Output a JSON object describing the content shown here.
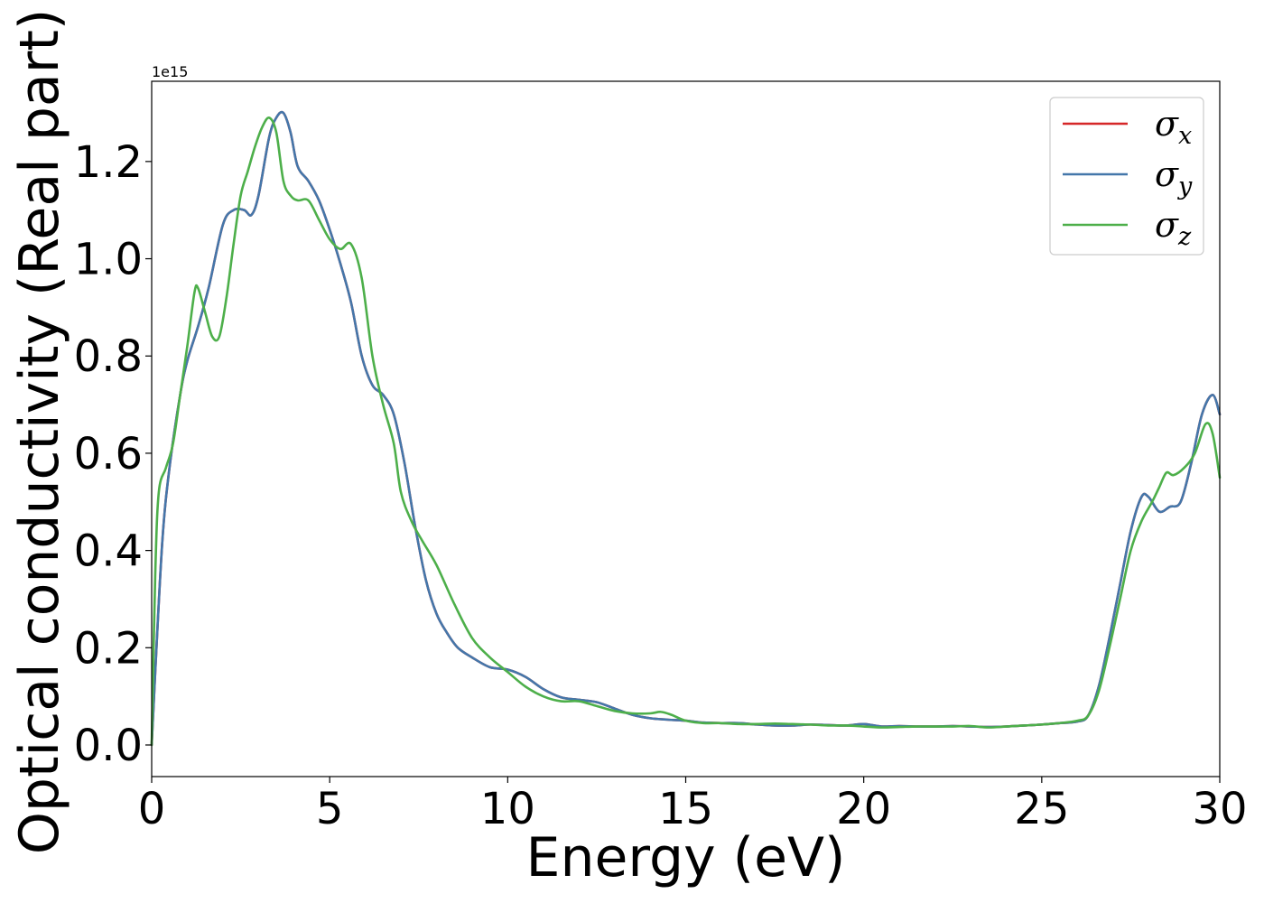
{
  "chart_data": {
    "type": "line",
    "xlabel": "Energy (eV)",
    "ylabel": "Optical conductivity (Real part)",
    "offset_text": "1e15",
    "xlim": [
      0,
      30
    ],
    "ylim": [
      -0.065,
      1.365
    ],
    "xticks": [
      0,
      5,
      10,
      15,
      20,
      25,
      30
    ],
    "xtick_labels": [
      "0",
      "5",
      "10",
      "15",
      "20",
      "25",
      "30"
    ],
    "yticks": [
      0.0,
      0.2,
      0.4,
      0.6,
      0.8,
      1.0,
      1.2
    ],
    "ytick_labels": [
      "0.0",
      "0.2",
      "0.4",
      "0.6",
      "0.8",
      "1.0",
      "1.2"
    ],
    "grid": false,
    "legend_position": "top-right",
    "series": [
      {
        "name": "σx",
        "symbol": "σ",
        "subscript": "x",
        "color": "#d62728",
        "x": [
          0,
          0.1,
          0.3,
          0.5,
          0.8,
          1.0,
          1.3,
          1.6,
          2.0,
          2.3,
          2.6,
          2.8,
          3.0,
          3.3,
          3.5,
          3.7,
          3.9,
          4.1,
          4.4,
          4.7,
          5.0,
          5.3,
          5.6,
          5.9,
          6.2,
          6.5,
          6.8,
          7.1,
          7.4,
          7.7,
          8.0,
          8.3,
          8.6,
          9.0,
          9.5,
          10.0,
          10.5,
          11.0,
          11.5,
          12.0,
          12.5,
          13.0,
          13.5,
          14.0,
          14.5,
          15.0,
          15.5,
          16.0,
          16.5,
          17.0,
          17.5,
          18.0,
          18.5,
          19.0,
          19.5,
          20.0,
          20.5,
          21.0,
          21.5,
          22.0,
          22.5,
          23.0,
          23.5,
          24.0,
          24.5,
          25.0,
          25.5,
          26.0,
          26.3,
          26.6,
          26.9,
          27.2,
          27.5,
          27.8,
          28.0,
          28.3,
          28.6,
          28.9,
          29.2,
          29.5,
          29.8,
          30.0
        ],
        "values": [
          0.0,
          0.15,
          0.42,
          0.57,
          0.72,
          0.79,
          0.86,
          0.94,
          1.07,
          1.1,
          1.1,
          1.09,
          1.13,
          1.25,
          1.29,
          1.3,
          1.26,
          1.19,
          1.16,
          1.12,
          1.06,
          0.99,
          0.91,
          0.8,
          0.74,
          0.72,
          0.68,
          0.58,
          0.45,
          0.34,
          0.27,
          0.23,
          0.2,
          0.18,
          0.16,
          0.155,
          0.14,
          0.115,
          0.098,
          0.093,
          0.088,
          0.075,
          0.062,
          0.055,
          0.052,
          0.05,
          0.046,
          0.045,
          0.045,
          0.042,
          0.04,
          0.04,
          0.042,
          0.041,
          0.04,
          0.043,
          0.038,
          0.039,
          0.038,
          0.038,
          0.039,
          0.038,
          0.037,
          0.038,
          0.04,
          0.042,
          0.045,
          0.048,
          0.06,
          0.12,
          0.22,
          0.33,
          0.44,
          0.51,
          0.51,
          0.48,
          0.49,
          0.5,
          0.58,
          0.68,
          0.72,
          0.68
        ]
      },
      {
        "name": "σy",
        "symbol": "σ",
        "subscript": "y",
        "color": "#4477aa",
        "x": [
          0,
          0.1,
          0.3,
          0.5,
          0.8,
          1.0,
          1.3,
          1.6,
          2.0,
          2.3,
          2.6,
          2.8,
          3.0,
          3.3,
          3.5,
          3.7,
          3.9,
          4.1,
          4.4,
          4.7,
          5.0,
          5.3,
          5.6,
          5.9,
          6.2,
          6.5,
          6.8,
          7.1,
          7.4,
          7.7,
          8.0,
          8.3,
          8.6,
          9.0,
          9.5,
          10.0,
          10.5,
          11.0,
          11.5,
          12.0,
          12.5,
          13.0,
          13.5,
          14.0,
          14.5,
          15.0,
          15.5,
          16.0,
          16.5,
          17.0,
          17.5,
          18.0,
          18.5,
          19.0,
          19.5,
          20.0,
          20.5,
          21.0,
          21.5,
          22.0,
          22.5,
          23.0,
          23.5,
          24.0,
          24.5,
          25.0,
          25.5,
          26.0,
          26.3,
          26.6,
          26.9,
          27.2,
          27.5,
          27.8,
          28.0,
          28.3,
          28.6,
          28.9,
          29.2,
          29.5,
          29.8,
          30.0
        ],
        "values": [
          0.0,
          0.15,
          0.42,
          0.57,
          0.72,
          0.79,
          0.86,
          0.94,
          1.07,
          1.1,
          1.1,
          1.09,
          1.13,
          1.25,
          1.29,
          1.3,
          1.26,
          1.19,
          1.16,
          1.12,
          1.06,
          0.99,
          0.91,
          0.8,
          0.74,
          0.72,
          0.68,
          0.58,
          0.45,
          0.34,
          0.27,
          0.23,
          0.2,
          0.18,
          0.16,
          0.155,
          0.14,
          0.115,
          0.098,
          0.093,
          0.088,
          0.075,
          0.062,
          0.055,
          0.052,
          0.05,
          0.046,
          0.045,
          0.045,
          0.042,
          0.04,
          0.04,
          0.042,
          0.041,
          0.04,
          0.043,
          0.038,
          0.039,
          0.038,
          0.038,
          0.039,
          0.038,
          0.037,
          0.038,
          0.04,
          0.042,
          0.045,
          0.048,
          0.06,
          0.12,
          0.22,
          0.33,
          0.44,
          0.51,
          0.51,
          0.48,
          0.49,
          0.5,
          0.58,
          0.68,
          0.72,
          0.68
        ]
      },
      {
        "name": "σz",
        "symbol": "σ",
        "subscript": "z",
        "color": "#4daf4a",
        "x": [
          0,
          0.1,
          0.2,
          0.4,
          0.6,
          0.8,
          1.0,
          1.2,
          1.3,
          1.5,
          1.7,
          1.9,
          2.1,
          2.3,
          2.5,
          2.7,
          2.9,
          3.1,
          3.3,
          3.5,
          3.7,
          3.9,
          4.1,
          4.4,
          4.7,
          5.0,
          5.3,
          5.6,
          5.9,
          6.2,
          6.5,
          6.8,
          7.0,
          7.3,
          7.6,
          8.0,
          8.5,
          9.0,
          9.5,
          10.0,
          10.5,
          11.0,
          11.5,
          12.0,
          12.5,
          13.0,
          13.5,
          14.0,
          14.3,
          14.6,
          15.0,
          15.5,
          16.0,
          16.5,
          17.0,
          17.5,
          18.0,
          18.5,
          19.0,
          19.5,
          20.0,
          20.5,
          21.0,
          21.5,
          22.0,
          22.5,
          23.0,
          23.5,
          24.0,
          24.5,
          25.0,
          25.5,
          26.0,
          26.3,
          26.6,
          26.9,
          27.2,
          27.5,
          27.8,
          28.1,
          28.3,
          28.5,
          28.7,
          29.0,
          29.3,
          29.6,
          29.8,
          30.0
        ],
        "values": [
          0.0,
          0.35,
          0.52,
          0.57,
          0.62,
          0.72,
          0.82,
          0.93,
          0.94,
          0.89,
          0.84,
          0.84,
          0.92,
          1.03,
          1.13,
          1.18,
          1.23,
          1.27,
          1.29,
          1.26,
          1.16,
          1.13,
          1.12,
          1.12,
          1.08,
          1.04,
          1.02,
          1.03,
          0.96,
          0.8,
          0.7,
          0.62,
          0.52,
          0.46,
          0.42,
          0.37,
          0.29,
          0.22,
          0.18,
          0.15,
          0.12,
          0.1,
          0.09,
          0.09,
          0.08,
          0.07,
          0.065,
          0.065,
          0.068,
          0.062,
          0.05,
          0.045,
          0.045,
          0.043,
          0.043,
          0.044,
          0.043,
          0.042,
          0.04,
          0.04,
          0.038,
          0.036,
          0.037,
          0.038,
          0.038,
          0.038,
          0.039,
          0.036,
          0.038,
          0.04,
          0.042,
          0.045,
          0.05,
          0.06,
          0.11,
          0.2,
          0.3,
          0.4,
          0.46,
          0.5,
          0.53,
          0.56,
          0.555,
          0.57,
          0.6,
          0.66,
          0.64,
          0.55
        ]
      }
    ]
  }
}
